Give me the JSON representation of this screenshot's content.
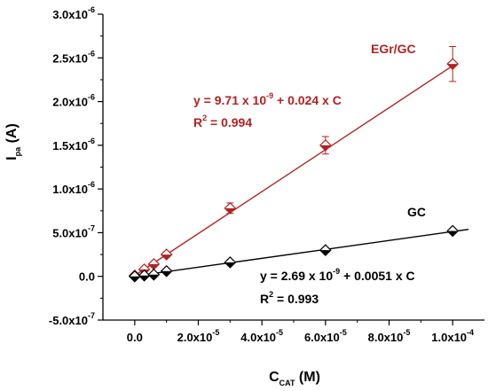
{
  "chart_data": {
    "type": "scatter",
    "x_axis": {
      "label_main": "C",
      "label_sub": "CAT",
      "label_unit": " (M)",
      "range": [
        -1e-05,
        0.00011
      ],
      "ticks": [
        {
          "value": 0,
          "mantissa": "0.0",
          "exp": ""
        },
        {
          "value": 2e-05,
          "mantissa": "2.0x10",
          "exp": "-5"
        },
        {
          "value": 4e-05,
          "mantissa": "4.0x10",
          "exp": "-5"
        },
        {
          "value": 6e-05,
          "mantissa": "6.0x10",
          "exp": "-5"
        },
        {
          "value": 8e-05,
          "mantissa": "8.0x10",
          "exp": "-5"
        },
        {
          "value": 0.0001,
          "mantissa": "1.0x10",
          "exp": "-4"
        }
      ]
    },
    "y_axis": {
      "label_main": "I",
      "label_sub": "pa",
      "label_unit": " (A)",
      "range": [
        -5e-07,
        3e-06
      ],
      "ticks": [
        {
          "value": -5e-07,
          "mantissa": "-5.0x10",
          "exp": "-7"
        },
        {
          "value": 0,
          "mantissa": "0.0",
          "exp": ""
        },
        {
          "value": 5e-07,
          "mantissa": "5.0x10",
          "exp": "-7"
        },
        {
          "value": 1e-06,
          "mantissa": "1.0x10",
          "exp": "-6"
        },
        {
          "value": 1.5e-06,
          "mantissa": "1.5x10",
          "exp": "-6"
        },
        {
          "value": 2e-06,
          "mantissa": "2.0x10",
          "exp": "-6"
        },
        {
          "value": 2.5e-06,
          "mantissa": "2.5x10",
          "exp": "-6"
        },
        {
          "value": 3e-06,
          "mantissa": "3.0x10",
          "exp": "-6"
        }
      ]
    },
    "series": [
      {
        "name": "EGr/GC",
        "color": "#b22222",
        "x": [
          0,
          3e-06,
          6e-06,
          1e-05,
          3e-05,
          6e-05,
          0.0001
        ],
        "y": [
          1e-08,
          8e-08,
          1.4e-07,
          2.5e-07,
          7.8e-07,
          1.5e-06,
          2.43e-06
        ],
        "error": [
          0,
          0,
          0,
          3e-08,
          6e-08,
          1e-07,
          2e-07
        ],
        "fit": {
          "intercept": 9.71e-09,
          "slope": 0.024,
          "x_range": [
            0,
            0.0001
          ],
          "equation_parts": [
            "y = 9.71 x 10",
            "-9",
            " + 0.024 x C"
          ],
          "r2_parts": [
            "R",
            "2",
            " = 0.994"
          ]
        }
      },
      {
        "name": "GC",
        "color": "#000000",
        "x": [
          0,
          3e-06,
          6e-06,
          1e-05,
          3e-05,
          6e-05,
          0.0001
        ],
        "y": [
          0.0,
          1e-08,
          2e-08,
          6e-08,
          1.6e-07,
          3e-07,
          5.2e-07
        ],
        "error": [
          0,
          0,
          0,
          0,
          0,
          0,
          0
        ],
        "fit": {
          "intercept": 2.69e-09,
          "slope": 0.0051,
          "x_range": [
            0,
            0.000105
          ],
          "equation_parts": [
            "y = 2.69 x 10",
            "-9",
            " + 0.0051 x C"
          ],
          "r2_parts": [
            "R",
            "2",
            " = 0.993"
          ]
        }
      }
    ]
  }
}
